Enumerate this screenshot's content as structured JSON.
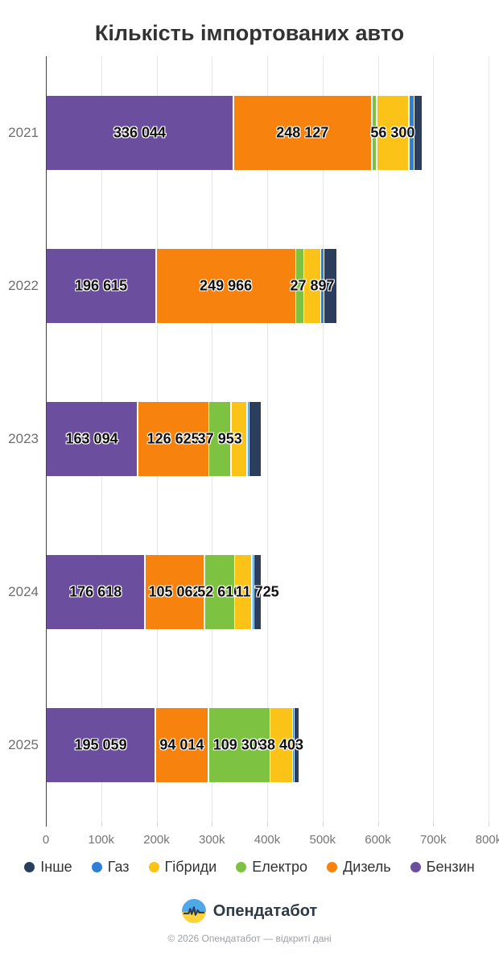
{
  "chart_data": {
    "type": "bar",
    "orientation": "horizontal",
    "stacked": true,
    "title": "Кількість імпортованих авто",
    "categories": [
      "2021",
      "2022",
      "2023",
      "2024",
      "2025"
    ],
    "series": [
      {
        "name": "Бензин",
        "color": "#6B4E9E",
        "values": [
          336044,
          196615,
          163094,
          176618,
          195059
        ],
        "labels": [
          "336 044",
          "196 615",
          "163 094",
          "176 618",
          "195 059"
        ]
      },
      {
        "name": "Дизель",
        "color": "#F8820E",
        "values": [
          248127,
          249966,
          126625,
          105062,
          94014
        ],
        "labels": [
          "248 127",
          "249 966",
          "126 625",
          "105 062",
          "94 014"
        ]
      },
      {
        "name": "Електро",
        "color": "#7DC241",
        "values": [
          6500,
          13000,
          37953,
          52610,
          109309
        ],
        "labels": [
          null,
          null,
          "37 953",
          "52 610",
          "109 309"
        ]
      },
      {
        "name": "Гібриди",
        "color": "#FBC318",
        "values": [
          56300,
          27897,
          27000,
          28800,
          38403
        ],
        "labels": [
          "56 300",
          "27 897",
          null,
          null,
          "38 403"
        ]
      },
      {
        "name": "Газ",
        "color": "#2E80D5",
        "values": [
          7000,
          4000,
          1200,
          800,
          900
        ],
        "labels": [
          null,
          null,
          null,
          null,
          null
        ]
      },
      {
        "name": "Інше",
        "color": "#2C3E5E",
        "values": [
          13000,
          21800,
          20500,
          11725,
          6200
        ],
        "labels": [
          null,
          null,
          null,
          "11 725",
          null
        ]
      }
    ],
    "xlim": [
      0,
      800000
    ],
    "x_ticks": [
      "0",
      "100k",
      "200k",
      "300k",
      "400k",
      "500k",
      "600k",
      "700k",
      "800k"
    ],
    "grid": true,
    "legend_position": "bottom",
    "legend_order": [
      "Інше",
      "Газ",
      "Гібриди",
      "Електро",
      "Дизель",
      "Бензин"
    ]
  },
  "footer": {
    "brand": "Опендатабот",
    "copyright": "© 2026 Опендатабот — відкриті дані",
    "logo_colors": {
      "sky": "#4FA8E8",
      "ground": "#FFD43B",
      "pulse": "#2C3E5E"
    }
  }
}
